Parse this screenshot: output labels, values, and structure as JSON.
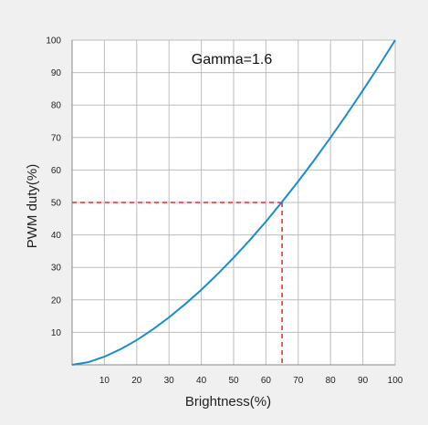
{
  "colors": {
    "background": "#f0f0f0",
    "plot_background": "#ffffff",
    "grid": "#bdbdbd",
    "curve": "#1a8ccc",
    "guide": "#e0282e",
    "text": "#222222"
  },
  "chart_data": {
    "type": "line",
    "title": "",
    "annotation": "Gamma=1.6",
    "xlabel": "Brightness(%)",
    "ylabel": "PWM duty(%)",
    "xlim": [
      0,
      100
    ],
    "ylim": [
      0,
      100
    ],
    "x_ticks": [
      10,
      20,
      30,
      40,
      50,
      60,
      70,
      80,
      90,
      100
    ],
    "y_ticks": [
      10,
      20,
      30,
      40,
      50,
      60,
      70,
      80,
      90,
      100
    ],
    "grid": true,
    "series": [
      {
        "x": [
          0,
          5,
          10,
          15,
          20,
          25,
          30,
          35,
          40,
          45,
          50,
          55,
          60,
          65,
          70,
          75,
          80,
          85,
          90,
          95,
          100
        ],
        "y": [
          0,
          0.8,
          2.5,
          4.8,
          7.6,
          10.9,
          14.6,
          18.7,
          23.1,
          27.9,
          33.0,
          38.4,
          44.1,
          50.2,
          56.5,
          63.1,
          70.0,
          77.1,
          84.5,
          92.1,
          100
        ]
      }
    ],
    "reference_point": {
      "x": 65,
      "y": 50
    }
  }
}
